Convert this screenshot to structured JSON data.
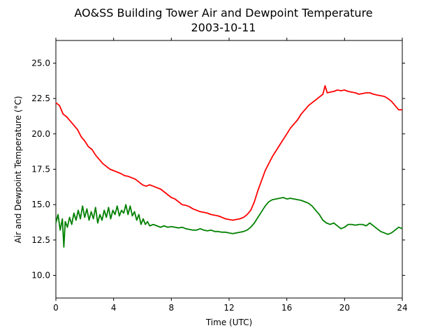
{
  "chart_data": {
    "type": "line",
    "title": "AO&SS Building Tower Air and Dewpoint Temperature",
    "subtitle": "2003-10-11",
    "xlabel": "Time (UTC)",
    "ylabel": "Air and Dewpoint Temperature (°C)",
    "xlim": [
      0,
      24
    ],
    "ylim": [
      8.4,
      26.6
    ],
    "xticks": [
      0,
      4,
      8,
      12,
      16,
      20,
      24
    ],
    "xtick_labels": [
      "0",
      "4",
      "8",
      "12",
      "16",
      "20",
      "24"
    ],
    "yticks": [
      10.0,
      12.5,
      15.0,
      17.5,
      20.0,
      22.5,
      25.0
    ],
    "ytick_labels": [
      "10.0",
      "12.5",
      "15.0",
      "17.5",
      "20.0",
      "22.5",
      "25.0"
    ],
    "grid": false,
    "series": [
      {
        "color": "#ff0000",
        "points": [
          [
            0.0,
            22.2
          ],
          [
            0.25,
            22.0
          ],
          [
            0.5,
            21.4
          ],
          [
            0.75,
            21.2
          ],
          [
            1.0,
            20.9
          ],
          [
            1.25,
            20.6
          ],
          [
            1.5,
            20.3
          ],
          [
            1.75,
            19.8
          ],
          [
            2.0,
            19.5
          ],
          [
            2.25,
            19.1
          ],
          [
            2.5,
            18.9
          ],
          [
            2.75,
            18.5
          ],
          [
            3.0,
            18.2
          ],
          [
            3.25,
            17.9
          ],
          [
            3.5,
            17.7
          ],
          [
            3.75,
            17.5
          ],
          [
            4.0,
            17.4
          ],
          [
            4.25,
            17.3
          ],
          [
            4.5,
            17.2
          ],
          [
            4.75,
            17.05
          ],
          [
            5.0,
            17.0
          ],
          [
            5.25,
            16.9
          ],
          [
            5.5,
            16.8
          ],
          [
            5.75,
            16.6
          ],
          [
            6.0,
            16.4
          ],
          [
            6.25,
            16.3
          ],
          [
            6.5,
            16.4
          ],
          [
            6.75,
            16.3
          ],
          [
            7.0,
            16.2
          ],
          [
            7.25,
            16.1
          ],
          [
            7.5,
            15.9
          ],
          [
            7.75,
            15.7
          ],
          [
            8.0,
            15.5
          ],
          [
            8.25,
            15.4
          ],
          [
            8.5,
            15.2
          ],
          [
            8.75,
            15.0
          ],
          [
            9.0,
            14.95
          ],
          [
            9.25,
            14.85
          ],
          [
            9.5,
            14.7
          ],
          [
            9.75,
            14.6
          ],
          [
            10.0,
            14.5
          ],
          [
            10.25,
            14.45
          ],
          [
            10.5,
            14.4
          ],
          [
            10.75,
            14.3
          ],
          [
            11.0,
            14.25
          ],
          [
            11.25,
            14.2
          ],
          [
            11.5,
            14.1
          ],
          [
            11.75,
            14.0
          ],
          [
            12.0,
            13.95
          ],
          [
            12.25,
            13.9
          ],
          [
            12.5,
            13.95
          ],
          [
            12.75,
            14.0
          ],
          [
            13.0,
            14.1
          ],
          [
            13.25,
            14.3
          ],
          [
            13.5,
            14.6
          ],
          [
            13.75,
            15.2
          ],
          [
            14.0,
            16.0
          ],
          [
            14.25,
            16.7
          ],
          [
            14.5,
            17.4
          ],
          [
            14.75,
            17.9
          ],
          [
            15.0,
            18.4
          ],
          [
            15.25,
            18.8
          ],
          [
            15.5,
            19.2
          ],
          [
            15.75,
            19.6
          ],
          [
            16.0,
            20.0
          ],
          [
            16.25,
            20.4
          ],
          [
            16.5,
            20.7
          ],
          [
            16.75,
            21.0
          ],
          [
            17.0,
            21.4
          ],
          [
            17.25,
            21.7
          ],
          [
            17.5,
            22.0
          ],
          [
            17.75,
            22.2
          ],
          [
            18.0,
            22.4
          ],
          [
            18.25,
            22.6
          ],
          [
            18.5,
            22.8
          ],
          [
            18.65,
            23.4
          ],
          [
            18.8,
            22.9
          ],
          [
            19.0,
            22.95
          ],
          [
            19.25,
            23.0
          ],
          [
            19.5,
            23.1
          ],
          [
            19.75,
            23.05
          ],
          [
            20.0,
            23.1
          ],
          [
            20.25,
            23.0
          ],
          [
            20.5,
            22.95
          ],
          [
            20.75,
            22.9
          ],
          [
            21.0,
            22.8
          ],
          [
            21.25,
            22.85
          ],
          [
            21.5,
            22.9
          ],
          [
            21.75,
            22.9
          ],
          [
            22.0,
            22.8
          ],
          [
            22.25,
            22.75
          ],
          [
            22.5,
            22.7
          ],
          [
            22.75,
            22.65
          ],
          [
            23.0,
            22.5
          ],
          [
            23.25,
            22.3
          ],
          [
            23.5,
            22.0
          ],
          [
            23.75,
            21.7
          ],
          [
            24.0,
            21.7
          ]
        ]
      },
      {
        "color": "#008000",
        "points": [
          [
            0.0,
            13.7
          ],
          [
            0.15,
            14.3
          ],
          [
            0.3,
            13.2
          ],
          [
            0.45,
            14.0
          ],
          [
            0.55,
            12.0
          ],
          [
            0.65,
            13.8
          ],
          [
            0.8,
            13.4
          ],
          [
            0.95,
            14.1
          ],
          [
            1.1,
            13.6
          ],
          [
            1.25,
            14.4
          ],
          [
            1.4,
            13.9
          ],
          [
            1.55,
            14.6
          ],
          [
            1.7,
            14.0
          ],
          [
            1.85,
            14.9
          ],
          [
            2.0,
            14.1
          ],
          [
            2.15,
            14.7
          ],
          [
            2.3,
            13.9
          ],
          [
            2.45,
            14.5
          ],
          [
            2.6,
            14.0
          ],
          [
            2.75,
            14.8
          ],
          [
            2.9,
            13.7
          ],
          [
            3.05,
            14.3
          ],
          [
            3.2,
            13.9
          ],
          [
            3.35,
            14.6
          ],
          [
            3.5,
            14.1
          ],
          [
            3.65,
            14.8
          ],
          [
            3.8,
            14.0
          ],
          [
            3.95,
            14.6
          ],
          [
            4.1,
            14.3
          ],
          [
            4.25,
            14.9
          ],
          [
            4.4,
            14.2
          ],
          [
            4.55,
            14.6
          ],
          [
            4.7,
            14.4
          ],
          [
            4.85,
            15.0
          ],
          [
            5.0,
            14.3
          ],
          [
            5.15,
            14.9
          ],
          [
            5.3,
            14.2
          ],
          [
            5.45,
            14.5
          ],
          [
            5.6,
            13.9
          ],
          [
            5.75,
            14.3
          ],
          [
            5.9,
            13.6
          ],
          [
            6.05,
            14.0
          ],
          [
            6.2,
            13.6
          ],
          [
            6.35,
            13.8
          ],
          [
            6.5,
            13.5
          ],
          [
            6.75,
            13.6
          ],
          [
            7.0,
            13.5
          ],
          [
            7.25,
            13.4
          ],
          [
            7.5,
            13.5
          ],
          [
            7.75,
            13.4
          ],
          [
            8.0,
            13.45
          ],
          [
            8.25,
            13.4
          ],
          [
            8.5,
            13.35
          ],
          [
            8.75,
            13.4
          ],
          [
            9.0,
            13.3
          ],
          [
            9.25,
            13.25
          ],
          [
            9.5,
            13.2
          ],
          [
            9.75,
            13.2
          ],
          [
            10.0,
            13.3
          ],
          [
            10.25,
            13.2
          ],
          [
            10.5,
            13.15
          ],
          [
            10.75,
            13.2
          ],
          [
            11.0,
            13.1
          ],
          [
            11.25,
            13.1
          ],
          [
            11.5,
            13.05
          ],
          [
            11.75,
            13.05
          ],
          [
            12.0,
            13.0
          ],
          [
            12.25,
            12.95
          ],
          [
            12.5,
            13.0
          ],
          [
            12.75,
            13.05
          ],
          [
            13.0,
            13.1
          ],
          [
            13.25,
            13.2
          ],
          [
            13.5,
            13.4
          ],
          [
            13.75,
            13.7
          ],
          [
            14.0,
            14.1
          ],
          [
            14.25,
            14.5
          ],
          [
            14.5,
            14.9
          ],
          [
            14.75,
            15.2
          ],
          [
            15.0,
            15.35
          ],
          [
            15.25,
            15.4
          ],
          [
            15.5,
            15.45
          ],
          [
            15.75,
            15.5
          ],
          [
            16.0,
            15.4
          ],
          [
            16.25,
            15.45
          ],
          [
            16.5,
            15.4
          ],
          [
            16.75,
            15.35
          ],
          [
            17.0,
            15.3
          ],
          [
            17.25,
            15.2
          ],
          [
            17.5,
            15.1
          ],
          [
            17.75,
            14.9
          ],
          [
            18.0,
            14.6
          ],
          [
            18.25,
            14.3
          ],
          [
            18.5,
            13.9
          ],
          [
            18.75,
            13.7
          ],
          [
            19.0,
            13.6
          ],
          [
            19.25,
            13.7
          ],
          [
            19.5,
            13.5
          ],
          [
            19.75,
            13.3
          ],
          [
            20.0,
            13.4
          ],
          [
            20.25,
            13.6
          ],
          [
            20.5,
            13.6
          ],
          [
            20.75,
            13.55
          ],
          [
            21.0,
            13.6
          ],
          [
            21.25,
            13.6
          ],
          [
            21.5,
            13.5
          ],
          [
            21.75,
            13.7
          ],
          [
            22.0,
            13.5
          ],
          [
            22.25,
            13.3
          ],
          [
            22.5,
            13.1
          ],
          [
            22.75,
            13.0
          ],
          [
            23.0,
            12.9
          ],
          [
            23.25,
            13.0
          ],
          [
            23.5,
            13.2
          ],
          [
            23.75,
            13.4
          ],
          [
            24.0,
            13.3
          ]
        ]
      }
    ]
  }
}
